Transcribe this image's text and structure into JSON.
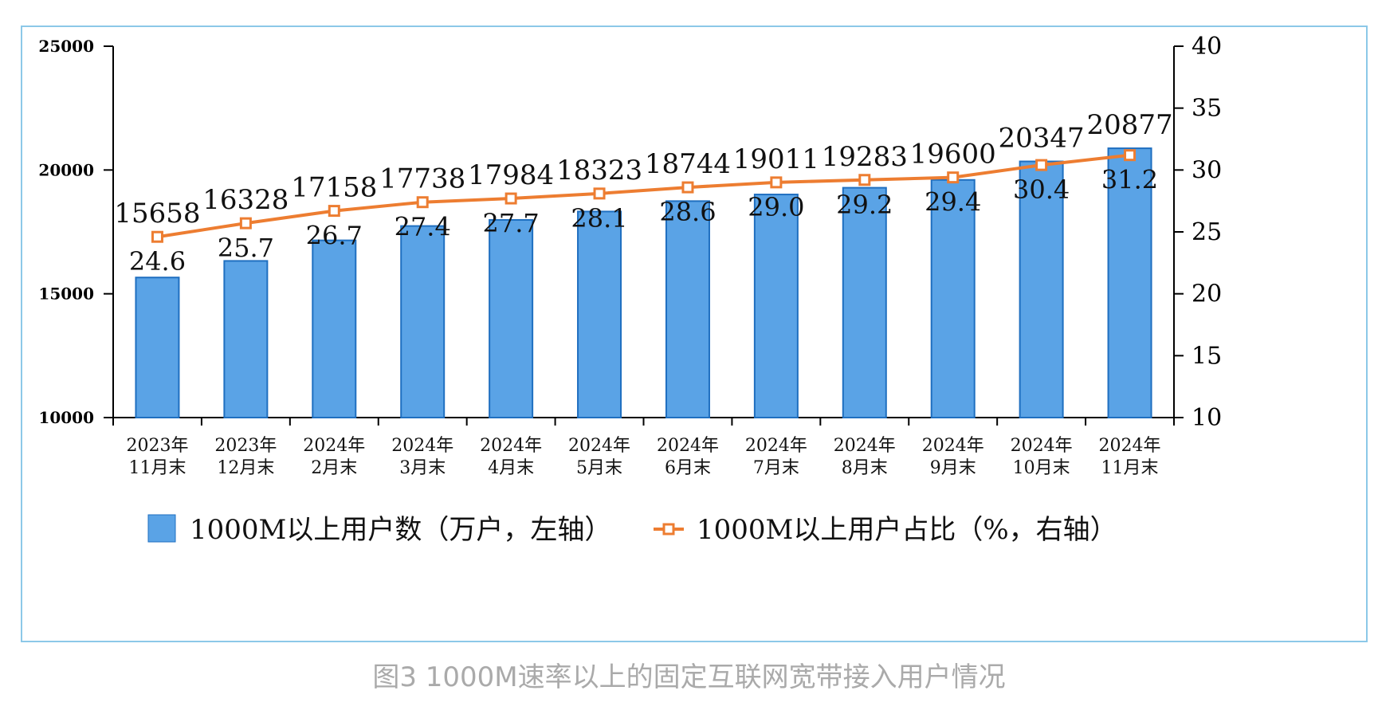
{
  "caption": "图3 1000M速率以上的固定互联网宽带接入用户情况",
  "colors": {
    "bar_fill": "#5aa3e6",
    "bar_stroke": "#1f6fc0",
    "line": "#ed7d31",
    "frame": "#8cc8e8",
    "caption": "#aaaaaa"
  },
  "chart_data": {
    "type": "bar",
    "title": "",
    "categories": [
      [
        "2023年",
        "11月末"
      ],
      [
        "2023年",
        "12月末"
      ],
      [
        "2024年",
        "2月末"
      ],
      [
        "2024年",
        "3月末"
      ],
      [
        "2024年",
        "4月末"
      ],
      [
        "2024年",
        "5月末"
      ],
      [
        "2024年",
        "6月末"
      ],
      [
        "2024年",
        "7月末"
      ],
      [
        "2024年",
        "8月末"
      ],
      [
        "2024年",
        "9月末"
      ],
      [
        "2024年",
        "10月末"
      ],
      [
        "2024年",
        "11月末"
      ]
    ],
    "series": [
      {
        "name": "1000M以上用户数（万户，左轴）",
        "kind": "bar",
        "axis": "left",
        "values": [
          15658,
          16328,
          17158,
          17738,
          17984,
          18323,
          18744,
          19011,
          19283,
          19600,
          20347,
          20877
        ],
        "labels": [
          "15658",
          "16328",
          "17158",
          "17738",
          "17984",
          "18323",
          "18744",
          "19011",
          "19283",
          "19600",
          "20347",
          "20877"
        ]
      },
      {
        "name": "1000M以上用户占比（%，右轴）",
        "kind": "line",
        "axis": "right",
        "values": [
          24.6,
          25.7,
          26.7,
          27.4,
          27.7,
          28.1,
          28.6,
          29.0,
          29.2,
          29.4,
          30.4,
          31.2
        ],
        "labels": [
          "24.6",
          "25.7",
          "26.7",
          "27.4",
          "27.7",
          "28.1",
          "28.6",
          "29.0",
          "29.2",
          "29.4",
          "30.4",
          "31.2"
        ]
      }
    ],
    "left_axis": {
      "ylim": [
        10000,
        25000
      ],
      "ticks": [
        10000,
        15000,
        20000,
        25000
      ]
    },
    "right_axis": {
      "ylim": [
        10,
        40
      ],
      "ticks": [
        10,
        15,
        20,
        25,
        30,
        35,
        40
      ]
    },
    "legend_position": "bottom"
  }
}
